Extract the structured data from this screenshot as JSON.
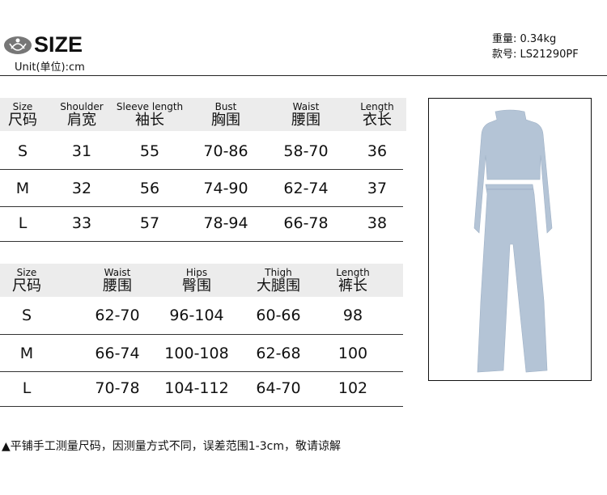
{
  "header": {
    "title": "SIZE",
    "unit": "Unit(单位):cm",
    "logo_icon": "lotus-figure-logo",
    "weight": "重量: 0.34kg",
    "style_no": "款号: LS21290PF"
  },
  "top_table": {
    "columns": [
      {
        "en": "Size",
        "zh": "尺码"
      },
      {
        "en": "Shoulder",
        "zh": "肩宽"
      },
      {
        "en": "Sleeve length",
        "zh": "袖长"
      },
      {
        "en": "Bust",
        "zh": "胸围"
      },
      {
        "en": "Waist",
        "zh": "腰围"
      },
      {
        "en": "Length",
        "zh": "衣长"
      }
    ],
    "rows": [
      [
        "S",
        "31",
        "55",
        "70-86",
        "58-70",
        "36"
      ],
      [
        "M",
        "32",
        "56",
        "74-90",
        "62-74",
        "37"
      ],
      [
        "L",
        "33",
        "57",
        "78-94",
        "66-78",
        "38"
      ]
    ]
  },
  "bottom_table": {
    "columns": [
      {
        "en": "Size",
        "zh": "尺码"
      },
      {
        "en": "Waist",
        "zh": "腰围"
      },
      {
        "en": "Hips",
        "zh": "臀围"
      },
      {
        "en": "Thigh",
        "zh": "大腿围"
      },
      {
        "en": "Length",
        "zh": "裤长"
      }
    ],
    "rows": [
      [
        "S",
        "62-70",
        "96-104",
        "60-66",
        "98"
      ],
      [
        "M",
        "66-74",
        "100-108",
        "62-68",
        "100"
      ],
      [
        "L",
        "70-78",
        "104-112",
        "64-70",
        "102"
      ]
    ]
  },
  "footnote": "平铺手工测量尺码，因测量方式不同，误差范围1-3cm，敬请谅解",
  "colors": {
    "garment": "#b4c4d6",
    "band": "#ececec"
  }
}
